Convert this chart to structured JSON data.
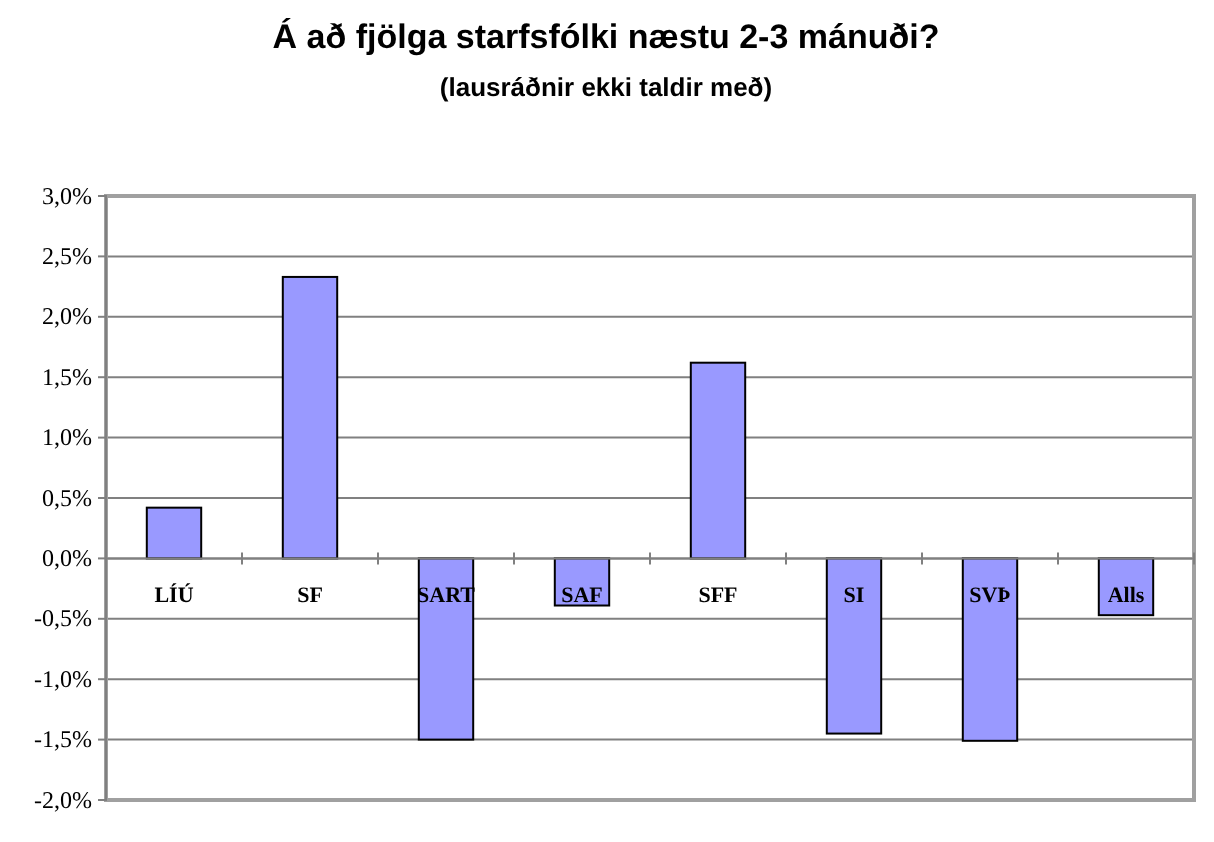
{
  "chart_data": {
    "type": "bar",
    "title": "Á að fjölga starfsfólki næstu 2-3 mánuði?",
    "subtitle": "(lausráðnir ekki taldir með)",
    "categories": [
      "LÍÚ",
      "SF",
      "SART",
      "SAF",
      "SFF",
      "SI",
      "SVÞ",
      "Alls"
    ],
    "values": [
      0.42,
      2.33,
      -1.5,
      -0.39,
      1.62,
      -1.45,
      -1.51,
      -0.47
    ],
    "color": "#9999ff",
    "ylim": [
      -2,
      3
    ],
    "yticks": [
      {
        "value": -2,
        "label": "-2,0%"
      },
      {
        "value": -1.5,
        "label": "-1,5%"
      },
      {
        "value": -1,
        "label": "-1,0%"
      },
      {
        "value": -0.5,
        "label": "-0,5%"
      },
      {
        "value": 0,
        "label": "0,0%"
      },
      {
        "value": 0.5,
        "label": "0,5%"
      },
      {
        "value": 1,
        "label": "1,0%"
      },
      {
        "value": 1.5,
        "label": "1,5%"
      },
      {
        "value": 2,
        "label": "2,0%"
      },
      {
        "value": 2.5,
        "label": "2,5%"
      },
      {
        "value": 3,
        "label": "3,0%"
      }
    ],
    "grid": "y"
  }
}
